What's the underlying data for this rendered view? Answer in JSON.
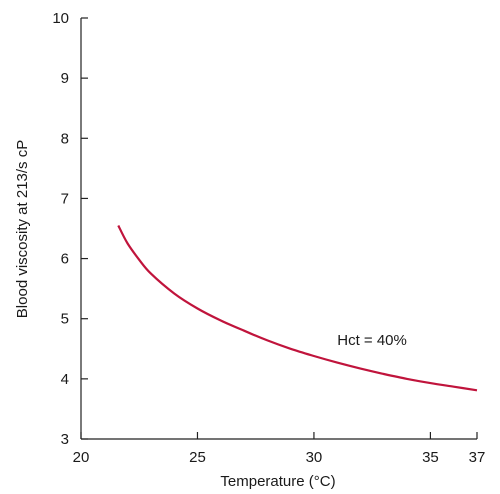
{
  "chart_data": {
    "type": "line",
    "title": "",
    "xlabel": "Temperature (°C)",
    "ylabel": "Blood viscosity at 213/s cP",
    "xlim": [
      20,
      37
    ],
    "ylim": [
      3,
      10
    ],
    "x_ticks": [
      20,
      25,
      30,
      35,
      37
    ],
    "y_ticks": [
      3,
      4,
      5,
      6,
      7,
      8,
      9,
      10
    ],
    "grid": false,
    "legend": "none",
    "annotation": {
      "text": "Hct = 40%",
      "x": 31.0,
      "y": 4.65
    },
    "series": [
      {
        "color": "#c0143c",
        "x": [
          21.6,
          22.0,
          22.5,
          23.0,
          24.0,
          25.0,
          26.0,
          27.0,
          28.0,
          29.0,
          30.0,
          31.0,
          32.0,
          33.0,
          34.0,
          35.0,
          36.0,
          37.0
        ],
        "y": [
          6.55,
          6.25,
          5.98,
          5.75,
          5.42,
          5.17,
          4.97,
          4.8,
          4.64,
          4.5,
          4.38,
          4.27,
          4.17,
          4.08,
          4.0,
          3.93,
          3.87,
          3.81
        ]
      }
    ]
  }
}
